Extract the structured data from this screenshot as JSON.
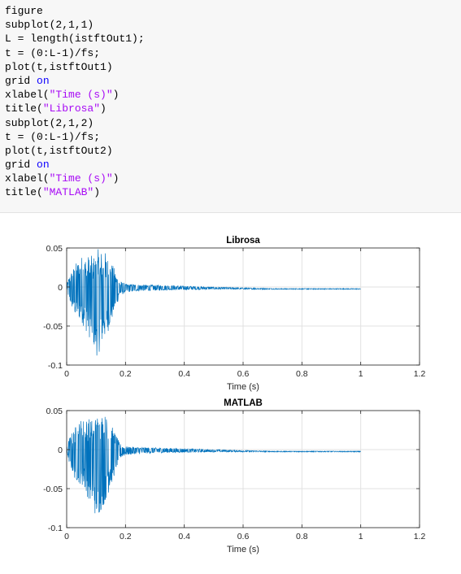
{
  "code_lines": [
    [
      {
        "t": "figure",
        "c": "plain"
      }
    ],
    [
      {
        "t": "subplot(2,1,1)",
        "c": "plain"
      }
    ],
    [
      {
        "t": "L = length(istftOut1);",
        "c": "plain"
      }
    ],
    [
      {
        "t": "t = (0:L-1)/fs;",
        "c": "plain"
      }
    ],
    [
      {
        "t": "plot(t,istftOut1)",
        "c": "plain"
      }
    ],
    [
      {
        "t": "grid ",
        "c": "plain"
      },
      {
        "t": "on",
        "c": "kw"
      }
    ],
    [
      {
        "t": "xlabel(",
        "c": "plain"
      },
      {
        "t": "\"Time (s)\"",
        "c": "str"
      },
      {
        "t": ")",
        "c": "plain"
      }
    ],
    [
      {
        "t": "title(",
        "c": "plain"
      },
      {
        "t": "\"Librosa\"",
        "c": "str"
      },
      {
        "t": ")",
        "c": "plain"
      }
    ],
    [
      {
        "t": "subplot(2,1,2)",
        "c": "plain"
      }
    ],
    [
      {
        "t": "t = (0:L-1)/fs;",
        "c": "plain"
      }
    ],
    [
      {
        "t": "plot(t,istftOut2)",
        "c": "plain"
      }
    ],
    [
      {
        "t": "grid ",
        "c": "plain"
      },
      {
        "t": "on",
        "c": "kw"
      }
    ],
    [
      {
        "t": "xlabel(",
        "c": "plain"
      },
      {
        "t": "\"Time (s)\"",
        "c": "str"
      },
      {
        "t": ")",
        "c": "plain"
      }
    ],
    [
      {
        "t": "title(",
        "c": "plain"
      },
      {
        "t": "\"MATLAB\"",
        "c": "str"
      },
      {
        "t": ")",
        "c": "plain"
      }
    ]
  ],
  "colors": {
    "line": "#0072bd",
    "grid": "#e1e1e1",
    "axis": "#262626",
    "code_bg": "#f7f7f7"
  },
  "chart_data": [
    {
      "type": "line",
      "title": "Librosa",
      "xlabel": "Time (s)",
      "ylabel": "",
      "xlim": [
        0,
        1.2
      ],
      "ylim": [
        -0.1,
        0.05
      ],
      "xticks": [
        0,
        0.2,
        0.4,
        0.6,
        0.8,
        1,
        1.2
      ],
      "xtick_labels": [
        "0",
        "0.2",
        "0.4",
        "0.6",
        "0.8",
        "1",
        "1.2"
      ],
      "yticks": [
        0.05,
        0,
        -0.05,
        -0.1
      ],
      "ytick_labels": [
        "0.05",
        "0",
        "-0.05",
        "-0.1"
      ],
      "grid": true,
      "series": [
        {
          "x_end": 1.0,
          "envelope": [
            {
              "x": 0,
              "lo": -0.003,
              "hi": 0.003
            },
            {
              "x": 0.01,
              "lo": -0.02,
              "hi": 0.016
            },
            {
              "x": 0.03,
              "lo": -0.04,
              "hi": 0.03
            },
            {
              "x": 0.05,
              "lo": -0.045,
              "hi": 0.04
            },
            {
              "x": 0.07,
              "lo": -0.06,
              "hi": 0.041
            },
            {
              "x": 0.09,
              "lo": -0.074,
              "hi": 0.04
            },
            {
              "x": 0.1,
              "lo": -0.09,
              "hi": 0.045
            },
            {
              "x": 0.11,
              "lo": -0.084,
              "hi": 0.05
            },
            {
              "x": 0.13,
              "lo": -0.068,
              "hi": 0.046
            },
            {
              "x": 0.15,
              "lo": -0.048,
              "hi": 0.033
            },
            {
              "x": 0.165,
              "lo": -0.03,
              "hi": 0.022
            },
            {
              "x": 0.18,
              "lo": -0.012,
              "hi": 0.008
            },
            {
              "x": 0.2,
              "lo": -0.007,
              "hi": 0.004
            },
            {
              "x": 0.25,
              "lo": -0.005,
              "hi": 0.003
            },
            {
              "x": 0.35,
              "lo": -0.004,
              "hi": 0.002
            },
            {
              "x": 0.5,
              "lo": -0.003,
              "hi": 0.0
            },
            {
              "x": 0.7,
              "lo": -0.003,
              "hi": -0.002
            },
            {
              "x": 1.0,
              "lo": -0.003,
              "hi": -0.002
            }
          ]
        }
      ]
    },
    {
      "type": "line",
      "title": "MATLAB",
      "xlabel": "Time (s)",
      "ylabel": "",
      "xlim": [
        0,
        1.2
      ],
      "ylim": [
        -0.1,
        0.05
      ],
      "xticks": [
        0,
        0.2,
        0.4,
        0.6,
        0.8,
        1,
        1.2
      ],
      "xtick_labels": [
        "0",
        "0.2",
        "0.4",
        "0.6",
        "0.8",
        "1",
        "1.2"
      ],
      "yticks": [
        0.05,
        0,
        -0.05,
        -0.1
      ],
      "ytick_labels": [
        "0.05",
        "0",
        "-0.05",
        "-0.1"
      ],
      "grid": true,
      "series": [
        {
          "x_end": 1.0,
          "envelope": [
            {
              "x": 0,
              "lo": -0.003,
              "hi": 0.003
            },
            {
              "x": 0.01,
              "lo": -0.02,
              "hi": 0.016
            },
            {
              "x": 0.03,
              "lo": -0.04,
              "hi": 0.03
            },
            {
              "x": 0.05,
              "lo": -0.045,
              "hi": 0.04
            },
            {
              "x": 0.07,
              "lo": -0.06,
              "hi": 0.041
            },
            {
              "x": 0.09,
              "lo": -0.074,
              "hi": 0.04
            },
            {
              "x": 0.1,
              "lo": -0.09,
              "hi": 0.045
            },
            {
              "x": 0.11,
              "lo": -0.084,
              "hi": 0.05
            },
            {
              "x": 0.13,
              "lo": -0.068,
              "hi": 0.046
            },
            {
              "x": 0.15,
              "lo": -0.048,
              "hi": 0.033
            },
            {
              "x": 0.165,
              "lo": -0.03,
              "hi": 0.022
            },
            {
              "x": 0.18,
              "lo": -0.012,
              "hi": 0.008
            },
            {
              "x": 0.2,
              "lo": -0.007,
              "hi": 0.004
            },
            {
              "x": 0.25,
              "lo": -0.005,
              "hi": 0.003
            },
            {
              "x": 0.35,
              "lo": -0.004,
              "hi": 0.002
            },
            {
              "x": 0.5,
              "lo": -0.003,
              "hi": 0.0
            },
            {
              "x": 0.7,
              "lo": -0.003,
              "hi": -0.002
            },
            {
              "x": 1.0,
              "lo": -0.003,
              "hi": -0.002
            }
          ]
        }
      ]
    }
  ]
}
